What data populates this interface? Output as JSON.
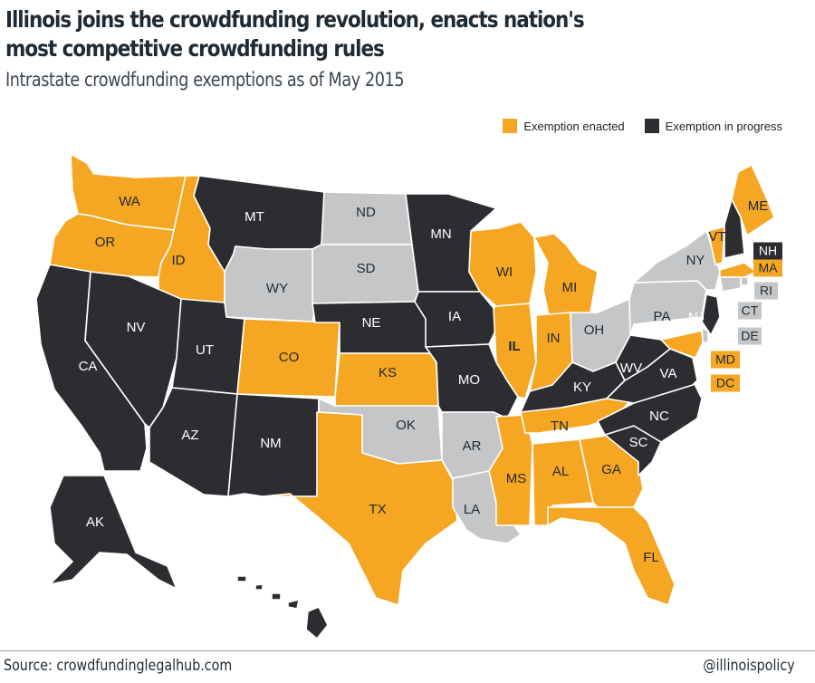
{
  "title": "Illinois joins the crowdfunding revolution, enacts nation's most competitive crowdfunding rules",
  "subtitle": "Intrastate crowdfunding exemptions as of May 2015",
  "legend": {
    "enacted": "Exemption enacted",
    "progress": "Exemption in progress"
  },
  "colors": {
    "enacted": "#f5a623",
    "progress": "#2b2d30",
    "none": "#c5c6c8",
    "text_on_dark": "#ffffff",
    "text_on_light": "#1f2a33"
  },
  "states": [
    {
      "id": "WA",
      "status": "enacted"
    },
    {
      "id": "OR",
      "status": "enacted"
    },
    {
      "id": "CA",
      "status": "progress"
    },
    {
      "id": "ID",
      "status": "enacted"
    },
    {
      "id": "NV",
      "status": "progress"
    },
    {
      "id": "MT",
      "status": "progress"
    },
    {
      "id": "WY",
      "status": "none"
    },
    {
      "id": "UT",
      "status": "progress"
    },
    {
      "id": "AZ",
      "status": "progress"
    },
    {
      "id": "CO",
      "status": "enacted"
    },
    {
      "id": "NM",
      "status": "progress"
    },
    {
      "id": "ND",
      "status": "none"
    },
    {
      "id": "SD",
      "status": "none"
    },
    {
      "id": "NE",
      "status": "progress"
    },
    {
      "id": "KS",
      "status": "enacted"
    },
    {
      "id": "OK",
      "status": "none"
    },
    {
      "id": "TX",
      "status": "enacted"
    },
    {
      "id": "MN",
      "status": "progress"
    },
    {
      "id": "IA",
      "status": "progress"
    },
    {
      "id": "MO",
      "status": "progress"
    },
    {
      "id": "AR",
      "status": "none"
    },
    {
      "id": "LA",
      "status": "none"
    },
    {
      "id": "WI",
      "status": "enacted"
    },
    {
      "id": "IL",
      "status": "enacted"
    },
    {
      "id": "MS",
      "status": "enacted"
    },
    {
      "id": "MI",
      "status": "enacted"
    },
    {
      "id": "IN",
      "status": "enacted"
    },
    {
      "id": "OH",
      "status": "none"
    },
    {
      "id": "KY",
      "status": "progress"
    },
    {
      "id": "TN",
      "status": "enacted"
    },
    {
      "id": "AL",
      "status": "enacted"
    },
    {
      "id": "GA",
      "status": "enacted"
    },
    {
      "id": "FL",
      "status": "enacted"
    },
    {
      "id": "SC",
      "status": "progress"
    },
    {
      "id": "NC",
      "status": "progress"
    },
    {
      "id": "VA",
      "status": "progress"
    },
    {
      "id": "WV",
      "status": "progress"
    },
    {
      "id": "PA",
      "status": "none"
    },
    {
      "id": "NY",
      "status": "none"
    },
    {
      "id": "VT",
      "status": "enacted"
    },
    {
      "id": "NH",
      "status": "progress"
    },
    {
      "id": "ME",
      "status": "enacted"
    },
    {
      "id": "MA",
      "status": "enacted"
    },
    {
      "id": "RI",
      "status": "none"
    },
    {
      "id": "CT",
      "status": "none"
    },
    {
      "id": "NJ",
      "status": "progress"
    },
    {
      "id": "DE",
      "status": "none"
    },
    {
      "id": "MD",
      "status": "enacted"
    },
    {
      "id": "DC",
      "status": "enacted"
    },
    {
      "id": "AK",
      "status": "progress"
    },
    {
      "id": "HI",
      "status": "progress"
    }
  ],
  "footer": {
    "source": "Source: crowdfundinglegalhub.com",
    "handle": "@illinoispolicy"
  }
}
